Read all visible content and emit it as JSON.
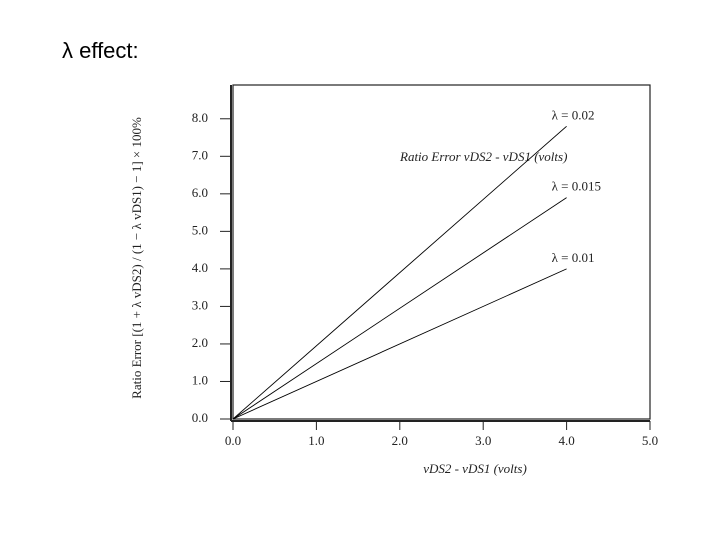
{
  "slide_title": "λ effect:",
  "chart_data": {
    "type": "line",
    "annotation": "Ratio Error vDS2 - vDS1 (volts)",
    "x_label": "vDS2 - vDS1 (volts)",
    "y_label": "Ratio Error [(1 + λ vDS2) / (1 − λ vDS1) − 1] × 100%",
    "x": [
      0,
      4.0
    ],
    "series": [
      {
        "name": "λ = 0.02",
        "color": "#000000",
        "values": [
          0,
          7.8
        ]
      },
      {
        "name": "λ = 0.015",
        "color": "#000000",
        "values": [
          0,
          5.9
        ]
      },
      {
        "name": "λ = 0.01",
        "color": "#000000",
        "values": [
          0,
          4.0
        ]
      }
    ],
    "xlim": [
      0,
      5
    ],
    "ylim": [
      0,
      8.9
    ],
    "xticks": [
      {
        "value": 0,
        "label": "0.0"
      },
      {
        "value": 1,
        "label": "1.0"
      },
      {
        "value": 2,
        "label": "2.0"
      },
      {
        "value": 3,
        "label": "3.0"
      },
      {
        "value": 4,
        "label": "4.0"
      },
      {
        "value": 5,
        "label": "5.0"
      }
    ],
    "yticks": [
      {
        "value": 0,
        "label": "0.0"
      },
      {
        "value": 1,
        "label": "1.0"
      },
      {
        "value": 2,
        "label": "2.0"
      },
      {
        "value": 3,
        "label": "3.0"
      },
      {
        "value": 4,
        "label": "4.0"
      },
      {
        "value": 5,
        "label": "5.0"
      },
      {
        "value": 6,
        "label": "6.0"
      },
      {
        "value": 7,
        "label": "7.0"
      },
      {
        "value": 8,
        "label": "8.0"
      }
    ],
    "grid": false
  }
}
